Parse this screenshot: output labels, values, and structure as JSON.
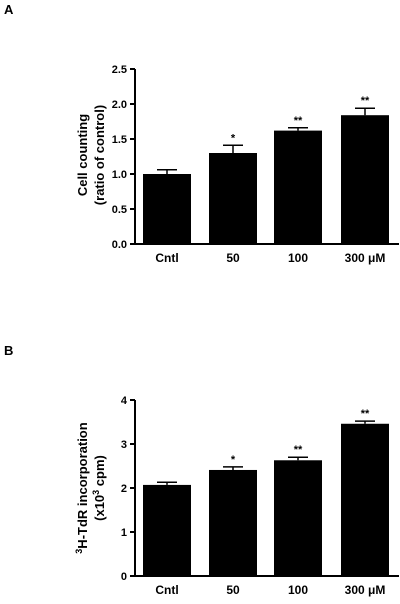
{
  "chart_data": [
    {
      "panel_label": "A",
      "type": "bar",
      "categories": [
        "Cntl",
        "50",
        "100",
        "300 μM"
      ],
      "values": [
        1.0,
        1.3,
        1.62,
        1.84
      ],
      "errors": [
        0.06,
        0.11,
        0.04,
        0.1
      ],
      "significance": [
        "",
        "*",
        "**",
        "**"
      ],
      "ylabel_line1": "Cell counting",
      "ylabel_line2": "(ratio of control)",
      "ylim": [
        0,
        2.5
      ],
      "yticks": [
        "0.0",
        "0.5",
        "1.0",
        "1.5",
        "2.0",
        "2.5"
      ],
      "ytick_values": [
        0,
        0.5,
        1.0,
        1.5,
        2.0,
        2.5
      ],
      "bar_color": "#000000"
    },
    {
      "panel_label": "B",
      "type": "bar",
      "categories": [
        "Cntl",
        "50",
        "100",
        "300 μM"
      ],
      "values": [
        2.07,
        2.41,
        2.63,
        3.46
      ],
      "errors": [
        0.06,
        0.07,
        0.07,
        0.06
      ],
      "significance": [
        "",
        "*",
        "**",
        "**"
      ],
      "ylabel_line1_sup": "3",
      "ylabel_line1": "H-TdR incorporation",
      "ylabel_line2_pre": "(x10",
      "ylabel_line2_sup": "3",
      "ylabel_line2_post": " cpm)",
      "ylim": [
        0,
        4
      ],
      "yticks": [
        "0",
        "1",
        "2",
        "3",
        "4"
      ],
      "ytick_values": [
        0,
        1,
        2,
        3,
        4
      ],
      "bar_color": "#000000"
    }
  ]
}
